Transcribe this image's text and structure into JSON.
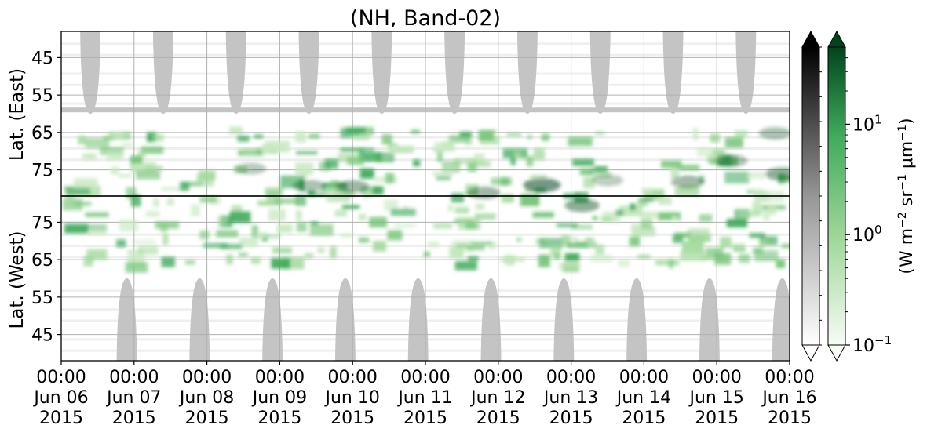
{
  "chart_data": {
    "type": "heatmap",
    "title": "(NH, Band-02)",
    "x_axis": {
      "ticks": [
        {
          "time": "00:00",
          "date": "Jun 06",
          "year": "2015"
        },
        {
          "time": "00:00",
          "date": "Jun 07",
          "year": "2015"
        },
        {
          "time": "00:00",
          "date": "Jun 08",
          "year": "2015"
        },
        {
          "time": "00:00",
          "date": "Jun 09",
          "year": "2015"
        },
        {
          "time": "00:00",
          "date": "Jun 10",
          "year": "2015"
        },
        {
          "time": "00:00",
          "date": "Jun 11",
          "year": "2015"
        },
        {
          "time": "00:00",
          "date": "Jun 12",
          "year": "2015"
        },
        {
          "time": "00:00",
          "date": "Jun 13",
          "year": "2015"
        },
        {
          "time": "00:00",
          "date": "Jun 14",
          "year": "2015"
        },
        {
          "time": "00:00",
          "date": "Jun 15",
          "year": "2015"
        },
        {
          "time": "00:00",
          "date": "Jun 16",
          "year": "2015"
        }
      ],
      "range": [
        "2015-06-06 00:00",
        "2015-06-16 00:00"
      ]
    },
    "panels": [
      {
        "ylabel": "Lat. (East)",
        "yticks": [
          "45",
          "55",
          "65",
          "75"
        ],
        "range": [
          38,
          82
        ],
        "direction": "increasing-down"
      },
      {
        "ylabel": "Lat. (West)",
        "yticks": [
          "75",
          "65",
          "55",
          "45"
        ],
        "range": [
          82,
          38
        ],
        "direction": "decreasing-down"
      }
    ],
    "colorbars": [
      {
        "cmap": "Greys",
        "extend": "both",
        "ticklabels": []
      },
      {
        "cmap": "Greens",
        "extend": "both",
        "scale": "log",
        "range": [
          0.1,
          50
        ],
        "ticks": [
          {
            "base": "10",
            "exp": "−1"
          },
          {
            "base": "10",
            "exp": "0"
          },
          {
            "base": "10",
            "exp": "1"
          }
        ]
      }
    ],
    "colorbar_label": {
      "pre": "(W m",
      "e1": "−2",
      "mid1": " sr",
      "e2": "−1",
      "mu": " μm",
      "e3": "−1",
      "post": ")"
    },
    "night_mask": {
      "color": "#c4c4c4",
      "east_lobes_center_days": [
        0.4,
        1.4,
        2.4,
        3.4,
        4.4,
        5.4,
        6.4,
        7.4,
        8.4,
        9.4
      ],
      "west_lobes_center_days": [
        0.9,
        1.9,
        2.9,
        3.9,
        4.9,
        5.9,
        6.9,
        7.9,
        8.9,
        9.9
      ],
      "lobe_edge_lat": 60,
      "east_band_lat": 59
    },
    "colors": {
      "green_dark": "#00441b",
      "green_mid": "#41ab5d",
      "green_light": "#c7e9c0",
      "grey_mask": "#c4c4c4",
      "grid": "#b0b0b0"
    }
  }
}
